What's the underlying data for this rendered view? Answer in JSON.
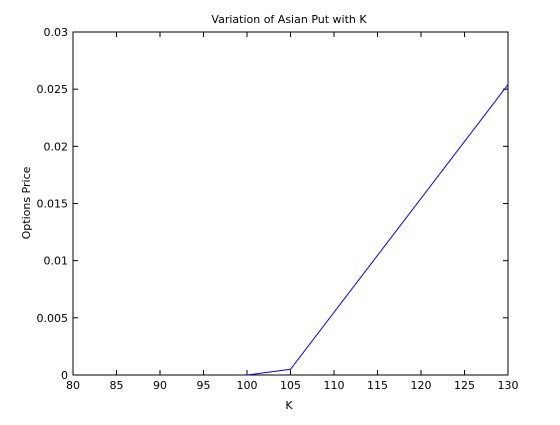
{
  "chart_data": {
    "type": "line",
    "title": "Variation of Asian Put with K",
    "xlabel": "K",
    "ylabel": "Options Price",
    "xlim": [
      80,
      130
    ],
    "ylim": [
      0,
      0.03
    ],
    "xticks": [
      80,
      85,
      90,
      95,
      100,
      105,
      110,
      115,
      120,
      125,
      130
    ],
    "xtick_labels": [
      "80",
      "85",
      "90",
      "95",
      "100",
      "105",
      "110",
      "115",
      "120",
      "125",
      "130"
    ],
    "yticks": [
      0,
      0.005,
      0.01,
      0.015,
      0.02,
      0.025,
      0.03
    ],
    "ytick_labels": [
      "0",
      "0.005",
      "0.01",
      "0.015",
      "0.02",
      "0.025",
      "0.03"
    ],
    "grid": false,
    "legend": "none",
    "series": [
      {
        "color": "#0000ff",
        "x": [
          100,
          105,
          130
        ],
        "y": [
          0,
          0.0005,
          0.0254
        ]
      }
    ]
  }
}
